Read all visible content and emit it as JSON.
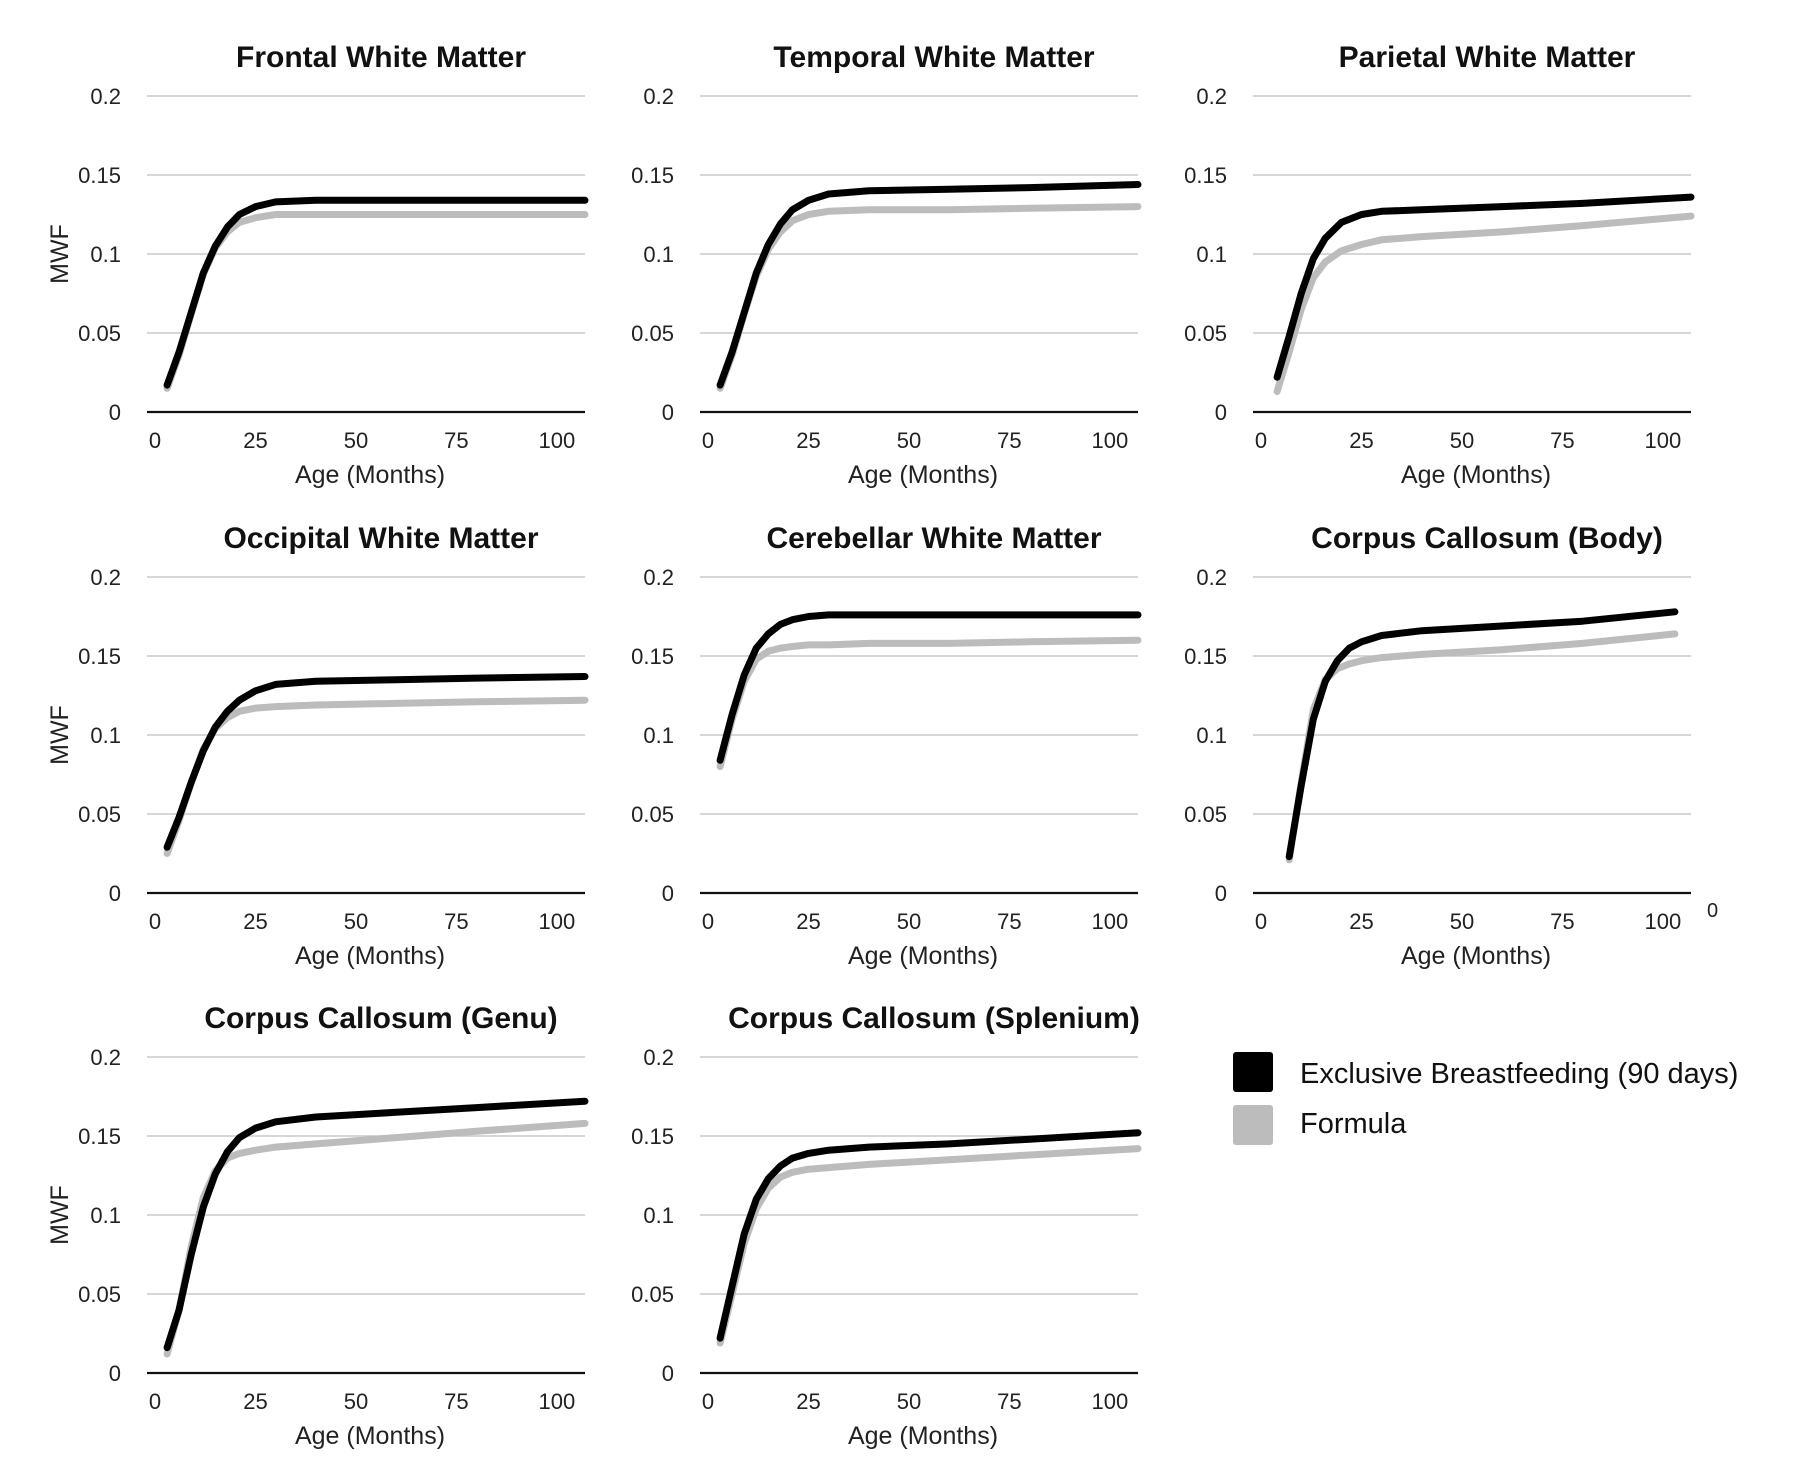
{
  "chart_data": {
    "type": "line",
    "x_tick_labels": [
      "0",
      "25",
      "50",
      "75",
      "100"
    ],
    "y_tick_labels": [
      "0",
      "0.05",
      "0.1",
      "0.15",
      "0.2"
    ],
    "xlim": [
      -2,
      107
    ],
    "ylim": [
      0,
      0.2
    ],
    "grid": true,
    "legend": {
      "position": "bottom-right",
      "entries": [
        {
          "label": "Exclusive Breastfeeding (90 days)",
          "color": "#000000"
        },
        {
          "label": "Formula",
          "color": "#bcbcbc"
        }
      ]
    },
    "stray_label": "0",
    "panels": [
      {
        "title": "Frontal White Matter",
        "xlabel": "Age (Months)",
        "ylabel": "MWF",
        "series": [
          {
            "name": "Exclusive Breastfeeding (90 days)",
            "x": [
              3,
              6,
              9,
              12,
              15,
              18,
              21,
              25,
              30,
              40,
              60,
              80,
              107
            ],
            "y": [
              0.017,
              0.038,
              0.063,
              0.088,
              0.105,
              0.117,
              0.125,
              0.13,
              0.133,
              0.134,
              0.134,
              0.134,
              0.134
            ]
          },
          {
            "name": "Formula",
            "x": [
              3,
              6,
              9,
              12,
              15,
              18,
              21,
              25,
              30,
              40,
              60,
              80,
              107
            ],
            "y": [
              0.015,
              0.036,
              0.062,
              0.087,
              0.104,
              0.114,
              0.12,
              0.123,
              0.125,
              0.125,
              0.125,
              0.125,
              0.125
            ]
          }
        ]
      },
      {
        "title": "Temporal White Matter",
        "xlabel": "Age (Months)",
        "ylabel": "",
        "series": [
          {
            "name": "Exclusive Breastfeeding (90 days)",
            "x": [
              3,
              6,
              9,
              12,
              15,
              18,
              21,
              25,
              30,
              40,
              60,
              80,
              107
            ],
            "y": [
              0.017,
              0.038,
              0.063,
              0.088,
              0.106,
              0.119,
              0.128,
              0.134,
              0.138,
              0.14,
              0.141,
              0.142,
              0.144
            ]
          },
          {
            "name": "Formula",
            "x": [
              3,
              6,
              9,
              12,
              15,
              18,
              21,
              25,
              30,
              40,
              60,
              80,
              107
            ],
            "y": [
              0.015,
              0.036,
              0.062,
              0.086,
              0.103,
              0.114,
              0.121,
              0.125,
              0.127,
              0.128,
              0.128,
              0.129,
              0.13
            ]
          }
        ]
      },
      {
        "title": "Parietal White Matter",
        "xlabel": "Age (Months)",
        "ylabel": "",
        "series": [
          {
            "name": "Exclusive Breastfeeding (90 days)",
            "x": [
              4,
              7,
              10,
              13,
              16,
              20,
              25,
              30,
              40,
              60,
              80,
              107
            ],
            "y": [
              0.022,
              0.048,
              0.075,
              0.097,
              0.11,
              0.12,
              0.125,
              0.127,
              0.128,
              0.13,
              0.132,
              0.136
            ]
          },
          {
            "name": "Formula",
            "x": [
              4,
              7,
              10,
              13,
              16,
              20,
              25,
              30,
              40,
              60,
              80,
              107
            ],
            "y": [
              0.013,
              0.038,
              0.065,
              0.085,
              0.095,
              0.102,
              0.106,
              0.109,
              0.111,
              0.114,
              0.118,
              0.124
            ]
          }
        ]
      },
      {
        "title": "Occipital White Matter",
        "xlabel": "Age (Months)",
        "ylabel": "MWF",
        "series": [
          {
            "name": "Exclusive Breastfeeding (90 days)",
            "x": [
              3,
              6,
              9,
              12,
              15,
              18,
              21,
              25,
              30,
              40,
              60,
              80,
              107
            ],
            "y": [
              0.029,
              0.048,
              0.07,
              0.09,
              0.105,
              0.115,
              0.122,
              0.128,
              0.132,
              0.134,
              0.135,
              0.136,
              0.137
            ]
          },
          {
            "name": "Formula",
            "x": [
              3,
              6,
              9,
              12,
              15,
              18,
              21,
              25,
              30,
              40,
              60,
              80,
              107
            ],
            "y": [
              0.025,
              0.046,
              0.07,
              0.091,
              0.104,
              0.111,
              0.115,
              0.117,
              0.118,
              0.119,
              0.12,
              0.121,
              0.122
            ]
          }
        ]
      },
      {
        "title": "Cerebellar White Matter",
        "xlabel": "Age (Months)",
        "ylabel": "",
        "series": [
          {
            "name": "Exclusive Breastfeeding (90 days)",
            "x": [
              3,
              6,
              9,
              12,
              15,
              18,
              21,
              25,
              30,
              40,
              60,
              80,
              107
            ],
            "y": [
              0.084,
              0.113,
              0.138,
              0.155,
              0.164,
              0.17,
              0.173,
              0.175,
              0.176,
              0.176,
              0.176,
              0.176,
              0.176
            ]
          },
          {
            "name": "Formula",
            "x": [
              3,
              6,
              9,
              12,
              15,
              18,
              21,
              25,
              30,
              40,
              60,
              80,
              107
            ],
            "y": [
              0.08,
              0.11,
              0.134,
              0.148,
              0.153,
              0.155,
              0.156,
              0.157,
              0.157,
              0.158,
              0.158,
              0.159,
              0.16
            ]
          }
        ]
      },
      {
        "title": "Corpus Callosum (Body)",
        "xlabel": "Age (Months)",
        "ylabel": "",
        "series": [
          {
            "name": "Exclusive Breastfeeding (90 days)",
            "x": [
              7,
              10,
              13,
              16,
              19,
              22,
              25,
              30,
              40,
              60,
              80,
              103
            ],
            "y": [
              0.023,
              0.068,
              0.11,
              0.134,
              0.147,
              0.155,
              0.159,
              0.163,
              0.166,
              0.169,
              0.172,
              0.178
            ]
          },
          {
            "name": "Formula",
            "x": [
              7,
              10,
              13,
              16,
              19,
              22,
              25,
              30,
              40,
              60,
              80,
              103
            ],
            "y": [
              0.021,
              0.07,
              0.116,
              0.135,
              0.142,
              0.145,
              0.147,
              0.149,
              0.151,
              0.154,
              0.158,
              0.164
            ]
          }
        ]
      },
      {
        "title": "Corpus Callosum (Genu)",
        "xlabel": "Age (Months)",
        "ylabel": "MWF",
        "series": [
          {
            "name": "Exclusive Breastfeeding (90 days)",
            "x": [
              3,
              6,
              9,
              12,
              15,
              18,
              21,
              25,
              30,
              40,
              60,
              80,
              107
            ],
            "y": [
              0.016,
              0.04,
              0.075,
              0.105,
              0.126,
              0.14,
              0.149,
              0.155,
              0.159,
              0.162,
              0.165,
              0.168,
              0.172
            ]
          },
          {
            "name": "Formula",
            "x": [
              3,
              6,
              9,
              12,
              15,
              18,
              21,
              25,
              30,
              40,
              60,
              80,
              107
            ],
            "y": [
              0.012,
              0.04,
              0.08,
              0.111,
              0.128,
              0.136,
              0.139,
              0.141,
              0.143,
              0.145,
              0.149,
              0.153,
              0.158
            ]
          }
        ]
      },
      {
        "title": "Corpus Callosum (Splenium)",
        "xlabel": "Age (Months)",
        "ylabel": "",
        "series": [
          {
            "name": "Exclusive Breastfeeding (90 days)",
            "x": [
              3,
              6,
              9,
              12,
              15,
              18,
              21,
              25,
              30,
              40,
              60,
              80,
              107
            ],
            "y": [
              0.022,
              0.055,
              0.088,
              0.11,
              0.123,
              0.131,
              0.136,
              0.139,
              0.141,
              0.143,
              0.145,
              0.148,
              0.152
            ]
          },
          {
            "name": "Formula",
            "x": [
              3,
              6,
              9,
              12,
              15,
              18,
              21,
              25,
              30,
              40,
              60,
              80,
              107
            ],
            "y": [
              0.019,
              0.05,
              0.082,
              0.104,
              0.117,
              0.124,
              0.127,
              0.129,
              0.13,
              0.132,
              0.135,
              0.138,
              0.142
            ]
          }
        ]
      }
    ]
  }
}
